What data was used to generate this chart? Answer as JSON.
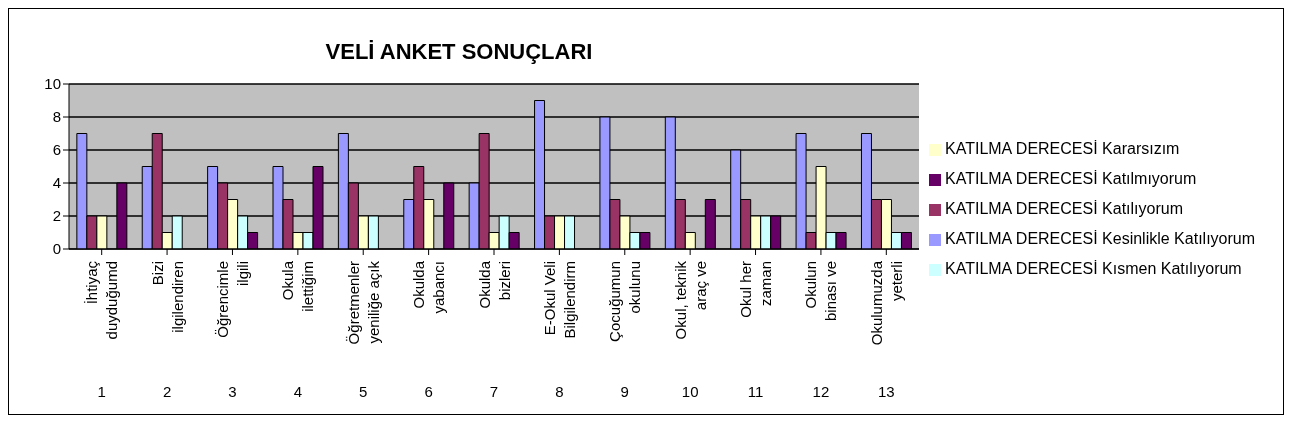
{
  "chart_data": {
    "type": "bar",
    "title": "VELİ ANKET SONUÇLARI",
    "categories": [
      "İhtiyaç\nduyduğumd",
      "Bizi\nilgilendiren",
      "Öğrencimle\nilgili",
      "Okula\nilettiğim",
      "Öğretmenler\nyeniliğe açık",
      "Okulda\nyabancı",
      "Okulda\nbizleri",
      "E-Okul Veli\nBilgilendirm",
      "Çocuğumun\nokulunu",
      "Okul, teknik\naraç ve",
      "Okul her\nzaman",
      "Okulun\nbinası ve",
      "Okulumuzda\nyeterli"
    ],
    "annotations": [
      "1",
      "2",
      "3",
      "4",
      "5",
      "6",
      "7",
      "8",
      "9",
      "10",
      "11",
      "12",
      "13"
    ],
    "series": [
      {
        "name": "KATILMA DERECESİ Kesinlikle Katılıyorum",
        "color": "#9999ff",
        "values": [
          7,
          5,
          5,
          5,
          7,
          3,
          4,
          9,
          8,
          8,
          6,
          7,
          7
        ]
      },
      {
        "name": "KATILMA DERECESİ Katılıyorum",
        "color": "#993366",
        "values": [
          2,
          7,
          4,
          3,
          4,
          5,
          7,
          2,
          3,
          3,
          3,
          1,
          3
        ]
      },
      {
        "name": "KATILMA DERECESİ Kararsızım",
        "color": "#ffffcc",
        "values": [
          2,
          1,
          3,
          1,
          2,
          3,
          1,
          2,
          2,
          1,
          2,
          5,
          3
        ]
      },
      {
        "name": "KATILMA DERECESİ Kısmen Katılıyorum",
        "color": "#ccffff",
        "values": [
          0,
          2,
          2,
          1,
          2,
          0,
          2,
          2,
          1,
          0,
          2,
          1,
          1
        ]
      },
      {
        "name": "KATILMA DERECESİ Katılmıyorum",
        "color": "#660066",
        "values": [
          4,
          0,
          1,
          5,
          0,
          4,
          1,
          0,
          1,
          3,
          2,
          1,
          1
        ]
      }
    ],
    "ylim": [
      0,
      10
    ],
    "yticks": [
      0,
      2,
      4,
      6,
      8,
      10
    ],
    "grid": "y",
    "legend": "right"
  }
}
